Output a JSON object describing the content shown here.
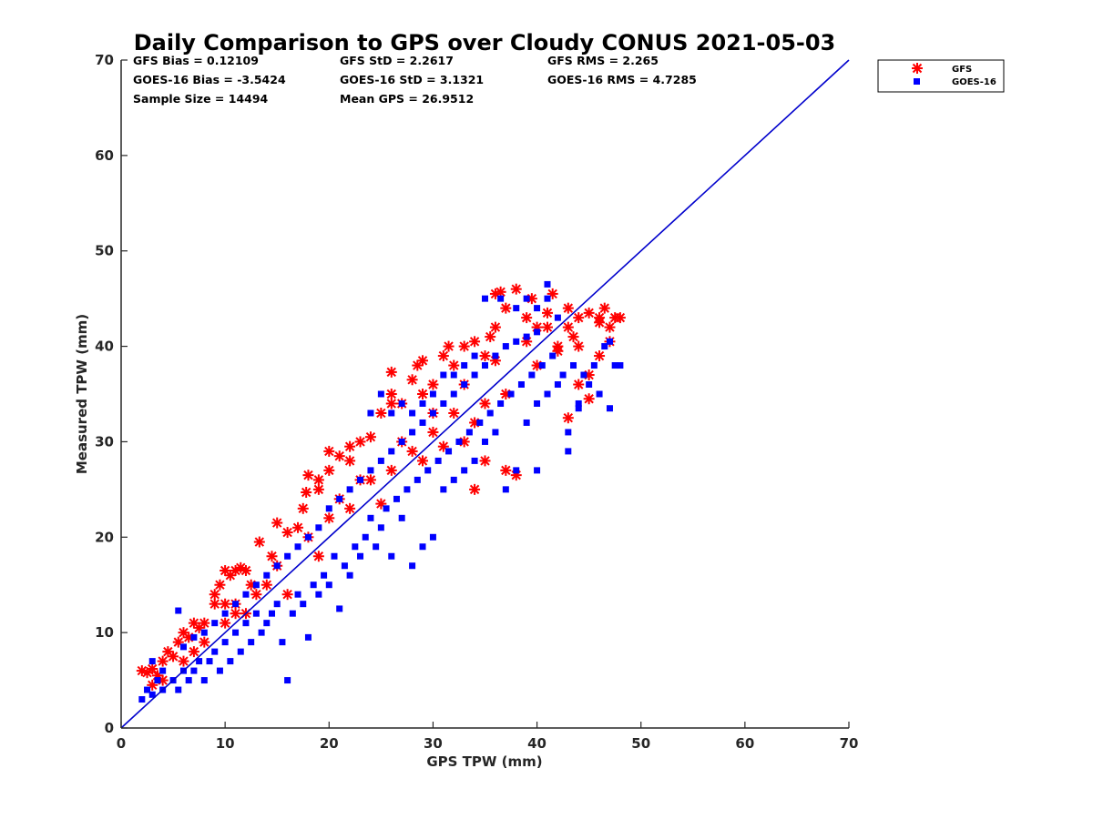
{
  "chart_data": {
    "type": "scatter",
    "title": "Daily Comparison to GPS over Cloudy CONUS 2021-05-03",
    "xlabel": "GPS TPW (mm)",
    "ylabel": "Measured TPW (mm)",
    "xlim": [
      0,
      70
    ],
    "ylim": [
      0,
      70
    ],
    "xticks": [
      "0",
      "10",
      "20",
      "30",
      "40",
      "50",
      "60",
      "70"
    ],
    "yticks": [
      "0",
      "10",
      "20",
      "30",
      "40",
      "50",
      "60",
      "70"
    ],
    "grid": false,
    "legend_position": "outside-top-right",
    "reference_line": {
      "from": [
        0,
        0
      ],
      "to": [
        70,
        70
      ],
      "color": "#0000cc"
    },
    "stats": [
      [
        "GFS Bias = 0.12109",
        "GFS StD = 2.2617",
        "GFS RMS = 2.265"
      ],
      [
        "GOES-16 Bias = -3.5424",
        "GOES-16 StD = 3.1321",
        "GOES-16 RMS = 4.7285"
      ],
      [
        "Sample Size = 14494",
        "Mean GPS = 26.9512",
        ""
      ]
    ],
    "series": [
      {
        "name": "GFS",
        "marker": "asterisk",
        "color": "#ff0000",
        "points": [
          [
            2,
            6
          ],
          [
            2.5,
            5.8
          ],
          [
            3,
            6.2
          ],
          [
            3.5,
            5.5
          ],
          [
            4,
            7
          ],
          [
            4.5,
            8
          ],
          [
            5,
            7.5
          ],
          [
            5.5,
            9
          ],
          [
            6,
            10
          ],
          [
            6.5,
            9.5
          ],
          [
            7,
            11
          ],
          [
            7.5,
            10.5
          ],
          [
            8,
            11
          ],
          [
            9,
            13
          ],
          [
            9.5,
            15
          ],
          [
            10,
            16.5
          ],
          [
            10.5,
            16
          ],
          [
            11,
            16.5
          ],
          [
            11.5,
            16.8
          ],
          [
            12,
            16.5
          ],
          [
            12.5,
            15
          ],
          [
            11,
            13
          ],
          [
            9,
            14
          ],
          [
            13.3,
            19.5
          ],
          [
            15,
            21.5
          ],
          [
            14.5,
            18
          ],
          [
            16,
            20.5
          ],
          [
            17,
            21
          ],
          [
            17.5,
            23
          ],
          [
            17.8,
            24.7
          ],
          [
            18,
            26.5
          ],
          [
            19,
            25
          ],
          [
            19,
            26
          ],
          [
            20,
            27
          ],
          [
            20,
            29
          ],
          [
            21,
            28.5
          ],
          [
            22,
            28
          ],
          [
            22,
            29.5
          ],
          [
            23,
            30
          ],
          [
            24,
            30.5
          ],
          [
            25,
            33
          ],
          [
            26,
            34
          ],
          [
            26,
            35
          ],
          [
            26,
            37.3
          ],
          [
            27,
            34
          ],
          [
            28,
            36.5
          ],
          [
            28.5,
            38
          ],
          [
            29,
            35
          ],
          [
            29,
            38.5
          ],
          [
            30,
            36
          ],
          [
            31,
            39
          ],
          [
            31.5,
            40
          ],
          [
            32,
            38
          ],
          [
            33,
            40
          ],
          [
            34,
            40.5
          ],
          [
            35,
            39
          ],
          [
            35.5,
            41
          ],
          [
            36,
            42
          ],
          [
            36,
            45.5
          ],
          [
            36.5,
            45.7
          ],
          [
            37,
            44
          ],
          [
            38,
            46
          ],
          [
            39,
            43
          ],
          [
            39.5,
            45
          ],
          [
            40,
            42
          ],
          [
            41,
            42
          ],
          [
            41.5,
            45.5
          ],
          [
            42,
            40
          ],
          [
            43,
            42
          ],
          [
            43.5,
            41
          ],
          [
            44,
            43
          ],
          [
            45,
            43.5
          ],
          [
            46,
            43
          ],
          [
            46.5,
            44
          ],
          [
            47,
            42
          ],
          [
            47.5,
            43
          ],
          [
            48,
            43
          ],
          [
            46,
            39
          ],
          [
            45,
            37
          ],
          [
            43,
            32.5
          ],
          [
            44,
            36
          ],
          [
            45,
            34.5
          ],
          [
            38,
            26.5
          ],
          [
            37,
            27
          ],
          [
            35,
            28
          ],
          [
            34,
            25
          ],
          [
            33,
            30
          ],
          [
            32,
            33
          ],
          [
            30,
            31
          ],
          [
            28,
            29
          ],
          [
            26,
            27
          ],
          [
            24,
            26
          ],
          [
            22,
            23
          ],
          [
            20,
            22
          ],
          [
            15,
            17
          ],
          [
            13,
            14
          ],
          [
            12,
            12
          ],
          [
            10,
            11
          ],
          [
            8,
            9
          ],
          [
            6,
            7
          ],
          [
            4,
            5
          ],
          [
            3,
            4.5
          ],
          [
            16,
            14
          ],
          [
            19,
            18
          ],
          [
            25,
            23.5
          ],
          [
            29,
            28
          ],
          [
            31,
            29.5
          ],
          [
            34,
            32
          ],
          [
            37,
            35
          ],
          [
            40,
            38
          ],
          [
            42,
            39.5
          ],
          [
            44,
            40
          ],
          [
            46,
            42.5
          ],
          [
            47,
            40.5
          ],
          [
            7,
            8
          ],
          [
            11,
            12
          ],
          [
            14,
            15
          ],
          [
            21,
            24
          ],
          [
            27,
            30
          ],
          [
            33,
            36
          ],
          [
            36,
            38.5
          ],
          [
            39,
            40.5
          ],
          [
            41,
            43.5
          ],
          [
            43,
            44
          ],
          [
            35,
            34
          ],
          [
            30,
            33
          ],
          [
            23,
            26
          ],
          [
            18,
            20
          ],
          [
            10,
            13
          ]
        ]
      },
      {
        "name": "GOES-16",
        "marker": "square",
        "color": "#0000ff",
        "points": [
          [
            2,
            3
          ],
          [
            2.5,
            4
          ],
          [
            3,
            3.5
          ],
          [
            3.5,
            5
          ],
          [
            4,
            4
          ],
          [
            5,
            5
          ],
          [
            5.5,
            4
          ],
          [
            6,
            6
          ],
          [
            6.5,
            5
          ],
          [
            7,
            6
          ],
          [
            7.5,
            7
          ],
          [
            8,
            5
          ],
          [
            8.5,
            7
          ],
          [
            9,
            8
          ],
          [
            9.5,
            6
          ],
          [
            10,
            9
          ],
          [
            10.5,
            7
          ],
          [
            11,
            10
          ],
          [
            11.5,
            8
          ],
          [
            12,
            11
          ],
          [
            12.5,
            9
          ],
          [
            13,
            12
          ],
          [
            13.5,
            10
          ],
          [
            14,
            11
          ],
          [
            14.5,
            12
          ],
          [
            15,
            13
          ],
          [
            15.5,
            9
          ],
          [
            16,
            5
          ],
          [
            16.5,
            12
          ],
          [
            17,
            14
          ],
          [
            17.5,
            13
          ],
          [
            18,
            9.5
          ],
          [
            18.5,
            15
          ],
          [
            19,
            14
          ],
          [
            19.5,
            16
          ],
          [
            20,
            15
          ],
          [
            20.5,
            18
          ],
          [
            21,
            12.5
          ],
          [
            21.5,
            17
          ],
          [
            22,
            16
          ],
          [
            22.5,
            19
          ],
          [
            23,
            18
          ],
          [
            23.5,
            20
          ],
          [
            24,
            22
          ],
          [
            24.5,
            19
          ],
          [
            25,
            21
          ],
          [
            25.5,
            23
          ],
          [
            26,
            18
          ],
          [
            26.5,
            24
          ],
          [
            27,
            22
          ],
          [
            27.5,
            25
          ],
          [
            28,
            17
          ],
          [
            28.5,
            26
          ],
          [
            29,
            19
          ],
          [
            29.5,
            27
          ],
          [
            30,
            20
          ],
          [
            30.5,
            28
          ],
          [
            31,
            25
          ],
          [
            31.5,
            29
          ],
          [
            32,
            26
          ],
          [
            32.5,
            30
          ],
          [
            33,
            27
          ],
          [
            33.5,
            31
          ],
          [
            34,
            28
          ],
          [
            34.5,
            32
          ],
          [
            35,
            30
          ],
          [
            35.5,
            33
          ],
          [
            36,
            31
          ],
          [
            36.5,
            34
          ],
          [
            37,
            25
          ],
          [
            37.5,
            35
          ],
          [
            38,
            27
          ],
          [
            38.5,
            36
          ],
          [
            39,
            32
          ],
          [
            39.5,
            37
          ],
          [
            40,
            34
          ],
          [
            40.5,
            38
          ],
          [
            41,
            35
          ],
          [
            41.5,
            39
          ],
          [
            42,
            36
          ],
          [
            42.5,
            37
          ],
          [
            43,
            29
          ],
          [
            43.5,
            38
          ],
          [
            44,
            34
          ],
          [
            44.5,
            37
          ],
          [
            45,
            36
          ],
          [
            45.5,
            38
          ],
          [
            46,
            35
          ],
          [
            46.5,
            40
          ],
          [
            47,
            40.5
          ],
          [
            47.5,
            38
          ],
          [
            48,
            38
          ],
          [
            35,
            45
          ],
          [
            36.5,
            45
          ],
          [
            38,
            44
          ],
          [
            39,
            45
          ],
          [
            40,
            44
          ],
          [
            41,
            46.5
          ],
          [
            41,
            45
          ],
          [
            42,
            43
          ],
          [
            43,
            31
          ],
          [
            44,
            33.5
          ],
          [
            47,
            33.5
          ],
          [
            40,
            27
          ],
          [
            5.5,
            12.3
          ],
          [
            3,
            7
          ],
          [
            4,
            6
          ],
          [
            6,
            8.5
          ],
          [
            7,
            9.5
          ],
          [
            8,
            10
          ],
          [
            9,
            11
          ],
          [
            10,
            12
          ],
          [
            11,
            13
          ],
          [
            12,
            14
          ],
          [
            13,
            15
          ],
          [
            14,
            16
          ],
          [
            15,
            17
          ],
          [
            16,
            18
          ],
          [
            17,
            19
          ],
          [
            18,
            20
          ],
          [
            19,
            21
          ],
          [
            20,
            23
          ],
          [
            21,
            24
          ],
          [
            22,
            25
          ],
          [
            23,
            26
          ],
          [
            24,
            27
          ],
          [
            25,
            28
          ],
          [
            26,
            29
          ],
          [
            27,
            30
          ],
          [
            28,
            31
          ],
          [
            29,
            32
          ],
          [
            30,
            33
          ],
          [
            31,
            34
          ],
          [
            32,
            35
          ],
          [
            33,
            36
          ],
          [
            34,
            37
          ],
          [
            35,
            38
          ],
          [
            36,
            39
          ],
          [
            37,
            40
          ],
          [
            38,
            40.5
          ],
          [
            39,
            41
          ],
          [
            40,
            41.5
          ],
          [
            25,
            35
          ],
          [
            24,
            33
          ],
          [
            26,
            33
          ],
          [
            27,
            34
          ],
          [
            28,
            33
          ],
          [
            29,
            34
          ],
          [
            30,
            35
          ],
          [
            31,
            37
          ],
          [
            32,
            37
          ],
          [
            33,
            38
          ],
          [
            34,
            39
          ]
        ]
      }
    ]
  }
}
